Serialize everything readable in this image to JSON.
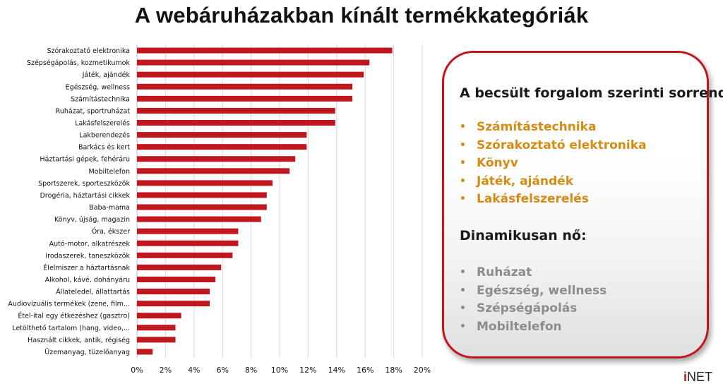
{
  "title": "A webáruházakban kínált termékkategóriák",
  "colors": {
    "bar": "#c0171e",
    "gridline": "#d9d9d9",
    "panel_border": "#c0171e",
    "top_list": "#d68b14",
    "dynamic_list": "#8c8c8c"
  },
  "chart_data": {
    "type": "bar",
    "orientation": "horizontal",
    "categories": [
      "Szórakoztató elektronika",
      "Szépségápolás, kozmetikumok",
      "Játék, ajándék",
      "Egészség, wellness",
      "Számítástechnika",
      "Ruházat, sportruházat",
      "Lakásfelszerelés",
      "Lakberendezés",
      "Barkács és kert",
      "Háztartási gépek, fehéráru",
      "Mobiltelefon",
      "Sportszerek, sporteszközök",
      "Drogéria, háztartási cikkek",
      "Baba-mama",
      "Könyv, újság, magazin",
      "Óra, ékszer",
      "Autó-motor, alkatrészek",
      "Irodaszerek, taneszközök",
      "Élelmiszer a háztartásnak",
      "Alkohol, kávé, dohányáru",
      "Állateledel, állattartás",
      "Audiovizuális termékek (zene, film...",
      "Étel-ital egy étkezéshez (gasztro)",
      "Letölthető tartalom (hang, video,...",
      "Használt cikkek, antik, régiség",
      "Üzemanyag, tüzelőanyag"
    ],
    "values": [
      17.9,
      16.3,
      15.9,
      15.1,
      15.1,
      13.9,
      13.9,
      11.9,
      11.9,
      11.1,
      10.7,
      9.5,
      9.1,
      9.1,
      8.7,
      7.1,
      7.1,
      6.7,
      5.9,
      5.5,
      5.1,
      5.1,
      3.1,
      2.7,
      2.7,
      1.1
    ],
    "xlim": [
      0,
      20
    ],
    "xticks": [
      "0%",
      "2%",
      "4%",
      "6%",
      "8%",
      "10%",
      "12%",
      "14%",
      "16%",
      "18%",
      "20%"
    ],
    "grid": true,
    "legend": "none"
  },
  "panel": {
    "heading": "A becsült forgalom szerinti sorrend:",
    "top_items": [
      "Számítástechnika",
      "Szórakoztató elektronika",
      "Könyv",
      "Játék, ajándék",
      "Lakásfelszerelés"
    ],
    "dynamic_heading": "Dinamikusan nő:",
    "dynamic_items": [
      "Ruházat",
      "Egészség, wellness",
      "Szépségápolás",
      "Mobiltelefon"
    ],
    "bullet": "•"
  },
  "logo": {
    "mark": "i",
    "text": "NET"
  }
}
